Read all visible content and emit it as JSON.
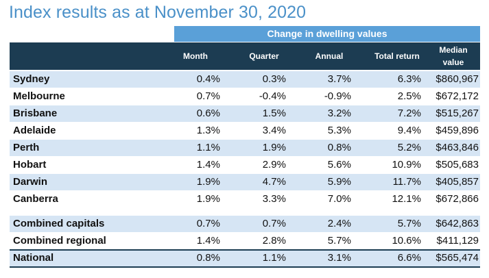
{
  "title": "Index results as at November 30, 2020",
  "band_label": "Change in dwelling values",
  "headers": {
    "month": "Month",
    "quarter": "Quarter",
    "annual": "Annual",
    "total_return": "Total return",
    "median_line1": "Median",
    "median_line2": "value"
  },
  "rows": [
    {
      "name": "Sydney",
      "month": "0.4%",
      "quarter": "0.3%",
      "annual": "3.7%",
      "total_return": "6.3%",
      "median": "$860,967"
    },
    {
      "name": "Melbourne",
      "month": "0.7%",
      "quarter": "-0.4%",
      "annual": "-0.9%",
      "total_return": "2.5%",
      "median": "$672,172"
    },
    {
      "name": "Brisbane",
      "month": "0.6%",
      "quarter": "1.5%",
      "annual": "3.2%",
      "total_return": "7.2%",
      "median": "$515,267"
    },
    {
      "name": "Adelaide",
      "month": "1.3%",
      "quarter": "3.4%",
      "annual": "5.3%",
      "total_return": "9.4%",
      "median": "$459,896"
    },
    {
      "name": "Perth",
      "month": "1.1%",
      "quarter": "1.9%",
      "annual": "0.8%",
      "total_return": "5.2%",
      "median": "$463,846"
    },
    {
      "name": "Hobart",
      "month": "1.4%",
      "quarter": "2.9%",
      "annual": "5.6%",
      "total_return": "10.9%",
      "median": "$505,683"
    },
    {
      "name": "Darwin",
      "month": "1.9%",
      "quarter": "4.7%",
      "annual": "5.9%",
      "total_return": "11.7%",
      "median": "$405,857"
    },
    {
      "name": "Canberra",
      "month": "1.9%",
      "quarter": "3.3%",
      "annual": "7.0%",
      "total_return": "12.1%",
      "median": "$672,866"
    },
    {
      "name": "Combined capitals",
      "month": "0.7%",
      "quarter": "0.7%",
      "annual": "2.4%",
      "total_return": "5.7%",
      "median": "$642,863"
    },
    {
      "name": "Combined regional",
      "month": "1.4%",
      "quarter": "2.8%",
      "annual": "5.7%",
      "total_return": "10.6%",
      "median": "$411,129"
    },
    {
      "name": "National",
      "month": "0.8%",
      "quarter": "1.1%",
      "annual": "3.1%",
      "total_return": "6.6%",
      "median": "$565,474"
    }
  ],
  "colors": {
    "title": "#4a90c8",
    "band": "#5aa0d8",
    "header": "#1c3c52",
    "shade": "#d6e5f4"
  }
}
